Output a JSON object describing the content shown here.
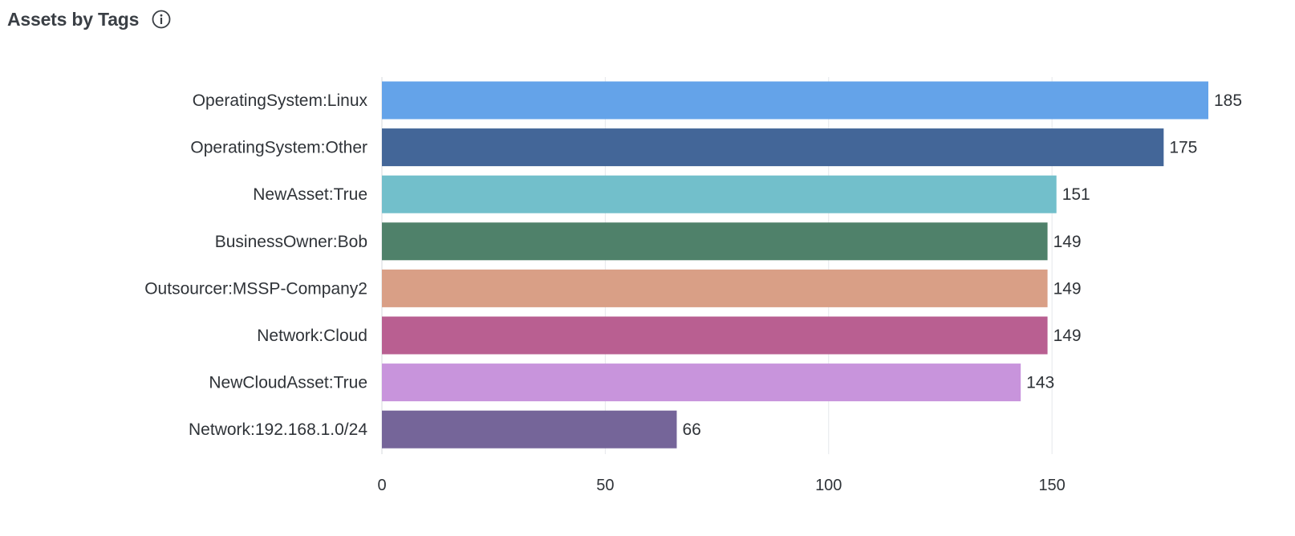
{
  "header": {
    "title": "Assets by Tags",
    "info_icon": "info-icon"
  },
  "chart_data": {
    "type": "bar",
    "orientation": "horizontal",
    "title": "Assets by Tags",
    "xlabel": "",
    "ylabel": "",
    "xlim": [
      0,
      185
    ],
    "xticks": [
      0,
      50,
      100,
      150
    ],
    "grid": true,
    "categories": [
      "OperatingSystem:Linux",
      "OperatingSystem:Other",
      "NewAsset:True",
      "BusinessOwner:Bob",
      "Outsourcer:MSSP-Company2",
      "Network:Cloud",
      "NewCloudAsset:True",
      "Network:192.168.1.0/24"
    ],
    "values": [
      185,
      175,
      151,
      149,
      149,
      149,
      143,
      66
    ],
    "colors": [
      "#64a3e9",
      "#436698",
      "#72bfcb",
      "#4f816a",
      "#d99f86",
      "#b95f91",
      "#c894dc",
      "#756599"
    ]
  }
}
